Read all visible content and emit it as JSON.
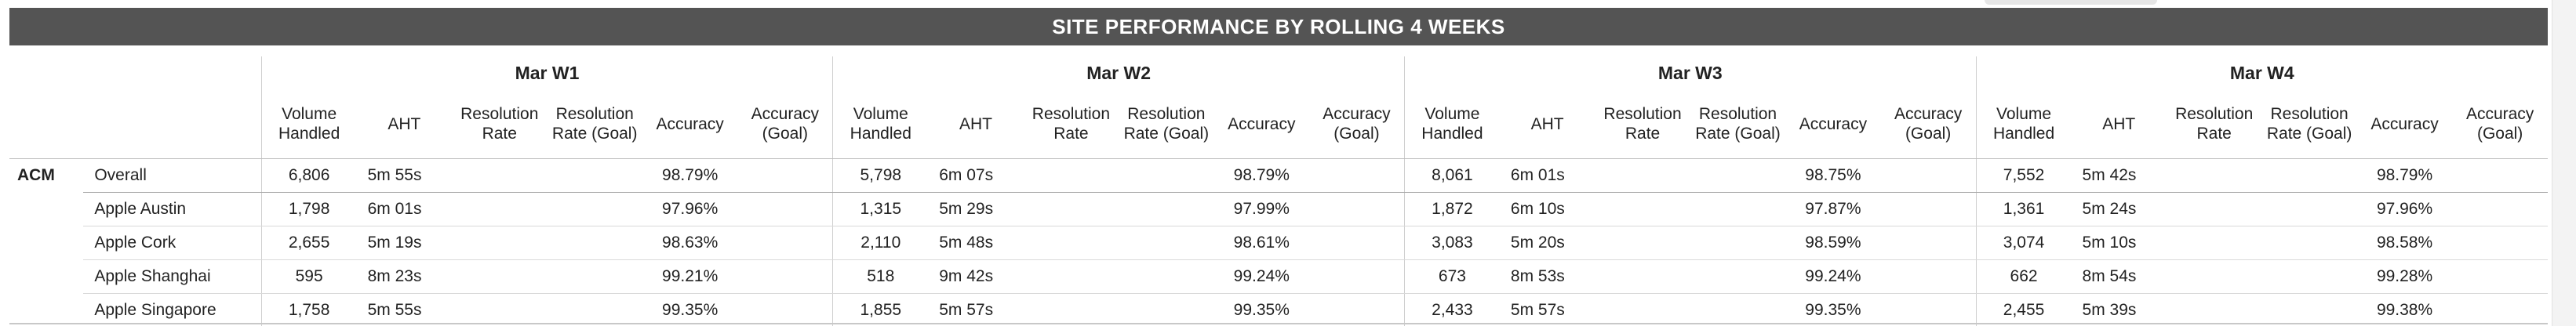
{
  "title": "SITE PERFORMANCE BY ROLLING 4 WEEKS",
  "weeks": [
    "Mar W1",
    "Mar W2",
    "Mar W3",
    "Mar W4"
  ],
  "metric_headers": {
    "volume": "Volume Handled",
    "aht": "AHT",
    "resolution_rate": "Resolution Rate",
    "resolution_goal": "Resolution Rate (Goal)",
    "accuracy": "Accuracy",
    "accuracy_goal": "Accuracy (Goal)"
  },
  "site": "ACM",
  "rows": [
    {
      "location": "Overall",
      "weeks": [
        {
          "volume": "6,806",
          "aht": "5m 55s",
          "resolution_rate": "",
          "resolution_goal": "",
          "accuracy": "98.79%",
          "accuracy_goal": ""
        },
        {
          "volume": "5,798",
          "aht": "6m 07s",
          "resolution_rate": "",
          "resolution_goal": "",
          "accuracy": "98.79%",
          "accuracy_goal": ""
        },
        {
          "volume": "8,061",
          "aht": "6m 01s",
          "resolution_rate": "",
          "resolution_goal": "",
          "accuracy": "98.75%",
          "accuracy_goal": ""
        },
        {
          "volume": "7,552",
          "aht": "5m 42s",
          "resolution_rate": "",
          "resolution_goal": "",
          "accuracy": "98.79%",
          "accuracy_goal": ""
        }
      ]
    },
    {
      "location": "Apple Austin",
      "weeks": [
        {
          "volume": "1,798",
          "aht": "6m 01s",
          "resolution_rate": "",
          "resolution_goal": "",
          "accuracy": "97.96%",
          "accuracy_goal": ""
        },
        {
          "volume": "1,315",
          "aht": "5m 29s",
          "resolution_rate": "",
          "resolution_goal": "",
          "accuracy": "97.99%",
          "accuracy_goal": ""
        },
        {
          "volume": "1,872",
          "aht": "6m 10s",
          "resolution_rate": "",
          "resolution_goal": "",
          "accuracy": "97.87%",
          "accuracy_goal": ""
        },
        {
          "volume": "1,361",
          "aht": "5m 24s",
          "resolution_rate": "",
          "resolution_goal": "",
          "accuracy": "97.96%",
          "accuracy_goal": ""
        }
      ]
    },
    {
      "location": "Apple Cork",
      "weeks": [
        {
          "volume": "2,655",
          "aht": "5m 19s",
          "resolution_rate": "",
          "resolution_goal": "",
          "accuracy": "98.63%",
          "accuracy_goal": ""
        },
        {
          "volume": "2,110",
          "aht": "5m 48s",
          "resolution_rate": "",
          "resolution_goal": "",
          "accuracy": "98.61%",
          "accuracy_goal": ""
        },
        {
          "volume": "3,083",
          "aht": "5m 20s",
          "resolution_rate": "",
          "resolution_goal": "",
          "accuracy": "98.59%",
          "accuracy_goal": ""
        },
        {
          "volume": "3,074",
          "aht": "5m 10s",
          "resolution_rate": "",
          "resolution_goal": "",
          "accuracy": "98.58%",
          "accuracy_goal": ""
        }
      ]
    },
    {
      "location": "Apple Shanghai",
      "weeks": [
        {
          "volume": "595",
          "aht": "8m 23s",
          "resolution_rate": "",
          "resolution_goal": "",
          "accuracy": "99.21%",
          "accuracy_goal": ""
        },
        {
          "volume": "518",
          "aht": "9m 42s",
          "resolution_rate": "",
          "resolution_goal": "",
          "accuracy": "99.24%",
          "accuracy_goal": ""
        },
        {
          "volume": "673",
          "aht": "8m 53s",
          "resolution_rate": "",
          "resolution_goal": "",
          "accuracy": "99.24%",
          "accuracy_goal": ""
        },
        {
          "volume": "662",
          "aht": "8m 54s",
          "resolution_rate": "",
          "resolution_goal": "",
          "accuracy": "99.28%",
          "accuracy_goal": ""
        }
      ]
    },
    {
      "location": "Apple Singapore",
      "weeks": [
        {
          "volume": "1,758",
          "aht": "5m 55s",
          "resolution_rate": "",
          "resolution_goal": "",
          "accuracy": "99.35%",
          "accuracy_goal": ""
        },
        {
          "volume": "1,855",
          "aht": "5m 57s",
          "resolution_rate": "",
          "resolution_goal": "",
          "accuracy": "99.35%",
          "accuracy_goal": ""
        },
        {
          "volume": "2,433",
          "aht": "5m 57s",
          "resolution_rate": "",
          "resolution_goal": "",
          "accuracy": "99.35%",
          "accuracy_goal": ""
        },
        {
          "volume": "2,455",
          "aht": "5m 39s",
          "resolution_rate": "",
          "resolution_goal": "",
          "accuracy": "99.38%",
          "accuracy_goal": ""
        }
      ]
    }
  ]
}
